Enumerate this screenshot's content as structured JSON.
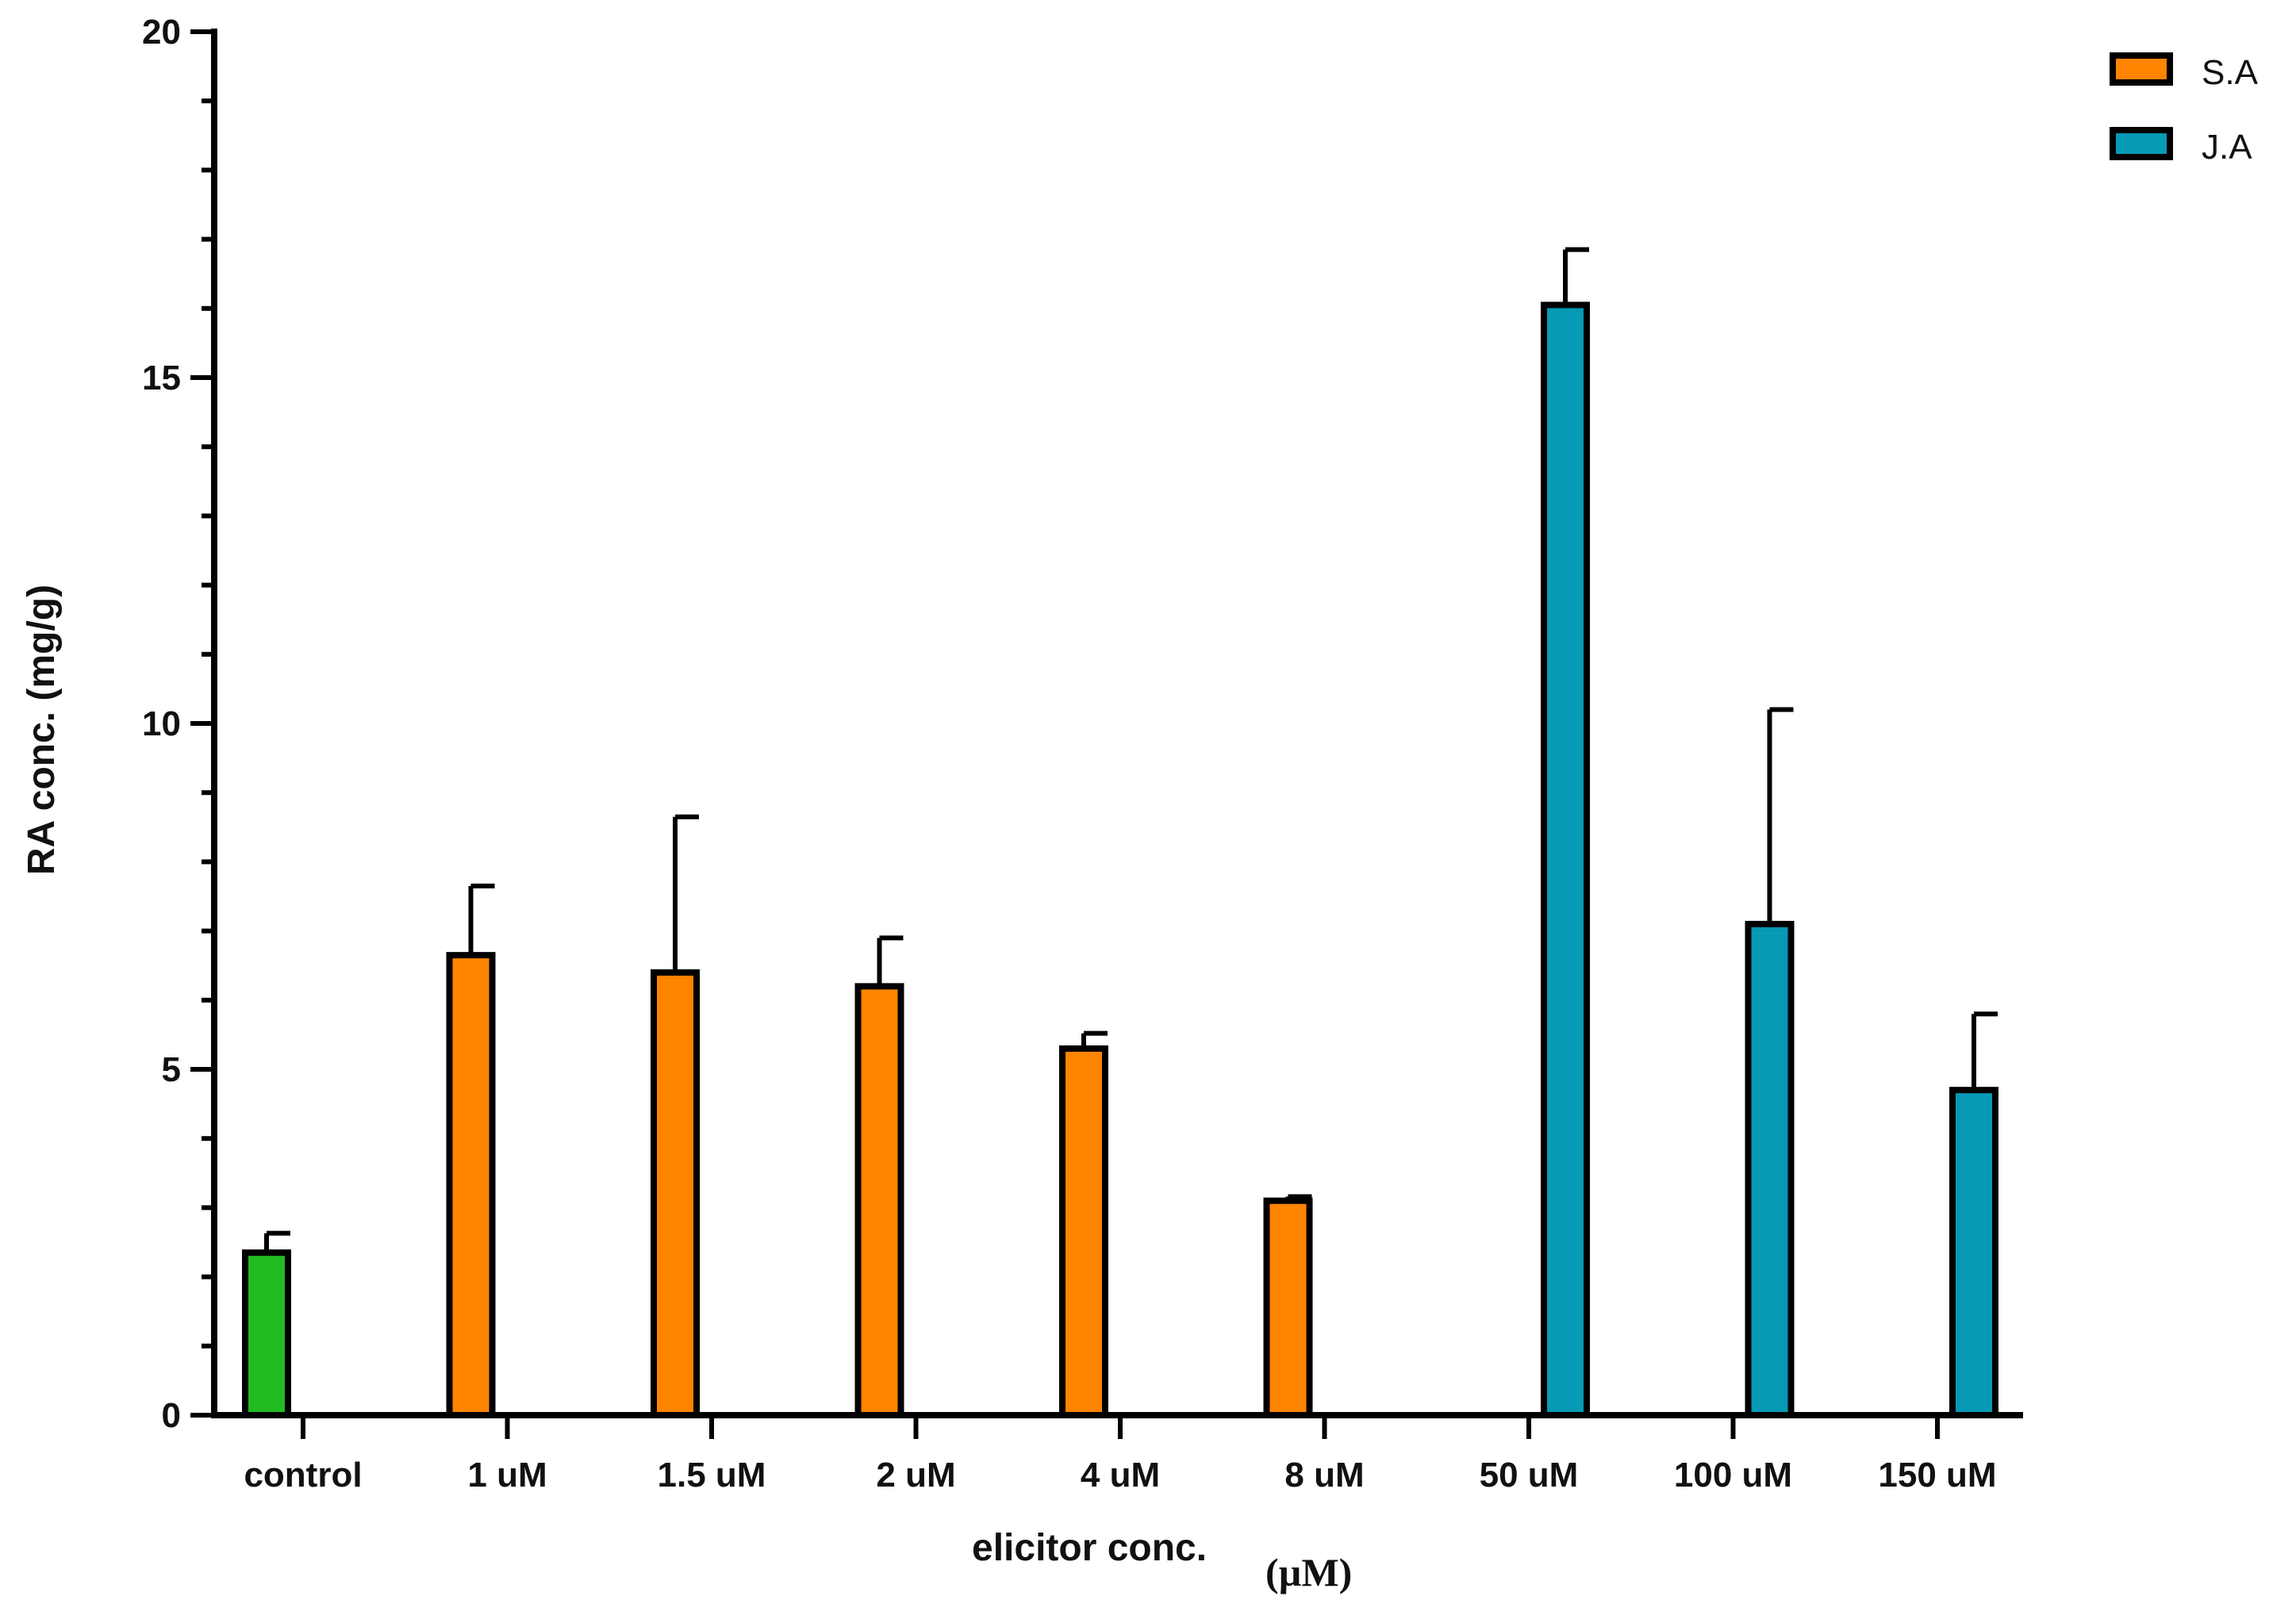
{
  "chart_data": {
    "type": "bar",
    "title": "",
    "xlabel": "elicitor conc.",
    "xlabel_unit": "(µM)",
    "ylabel": "RA conc. (mg/g)",
    "ylim": [
      0,
      20
    ],
    "yticks": [
      0,
      5,
      10,
      15,
      20
    ],
    "grid": false,
    "legend_position": "top-right",
    "categories": [
      "control",
      "1 uM",
      "1.5 uM",
      "2 uM",
      "4 uM",
      "8 uM",
      "50 uM",
      "100 uM",
      "150 uM"
    ],
    "series": [
      {
        "name": "control",
        "in_legend": false,
        "color": "#22BB22",
        "values": [
          2.35,
          null,
          null,
          null,
          null,
          null,
          null,
          null,
          null
        ],
        "errors": [
          0.28,
          null,
          null,
          null,
          null,
          null,
          null,
          null,
          null
        ]
      },
      {
        "name": "S.A",
        "in_legend": true,
        "color": "#FF8400",
        "values": [
          null,
          6.65,
          6.4,
          6.2,
          5.3,
          3.1,
          null,
          null,
          null
        ],
        "errors": [
          null,
          1.0,
          2.25,
          0.7,
          0.22,
          0.06,
          null,
          null,
          null
        ]
      },
      {
        "name": "J.A",
        "in_legend": true,
        "color": "#069AB5",
        "values": [
          null,
          null,
          null,
          null,
          null,
          null,
          16.05,
          7.1,
          4.7
        ],
        "errors": [
          null,
          null,
          null,
          null,
          null,
          null,
          0.8,
          3.1,
          1.1
        ]
      }
    ]
  }
}
